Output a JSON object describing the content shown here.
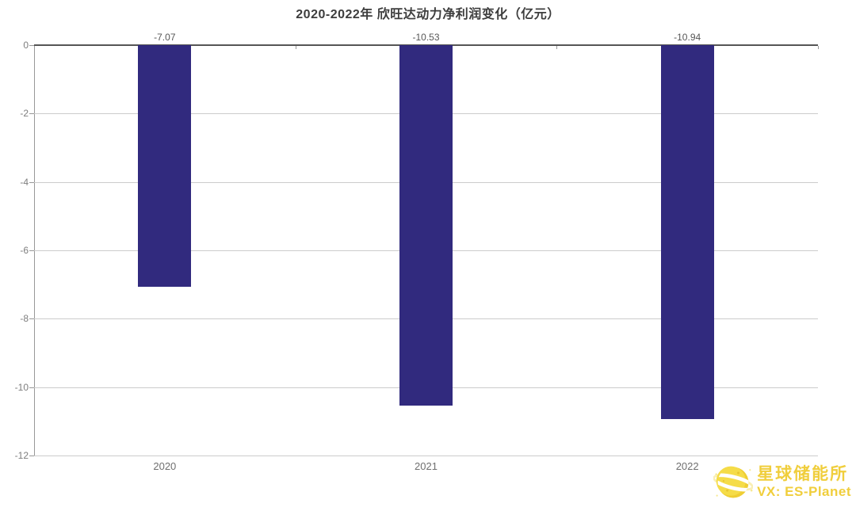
{
  "title": "2020-2022年 欣旺达动力净利润变化（亿元）",
  "chart_data": {
    "type": "bar",
    "title": "2020-2022年 欣旺达动力净利润变化（亿元）",
    "categories": [
      "2020",
      "2021",
      "2022"
    ],
    "values": [
      -7.07,
      -10.53,
      -10.94
    ],
    "data_labels": [
      "-7.07",
      "-10.53",
      "-10.94"
    ],
    "xlabel": "",
    "ylabel": "",
    "ylim": [
      -12,
      0
    ],
    "yticks": [
      0,
      -2,
      -4,
      -6,
      -8,
      -10,
      -12
    ],
    "grid": true,
    "legend": "none",
    "bar_color": "#312A7E"
  },
  "watermark": {
    "brand": "星球储能所",
    "wechat": "VX: ES-Planet",
    "text_color": "#F0CE3C",
    "planet_body_color": "#F5DC48",
    "ring_color": "#FFFFFF"
  }
}
